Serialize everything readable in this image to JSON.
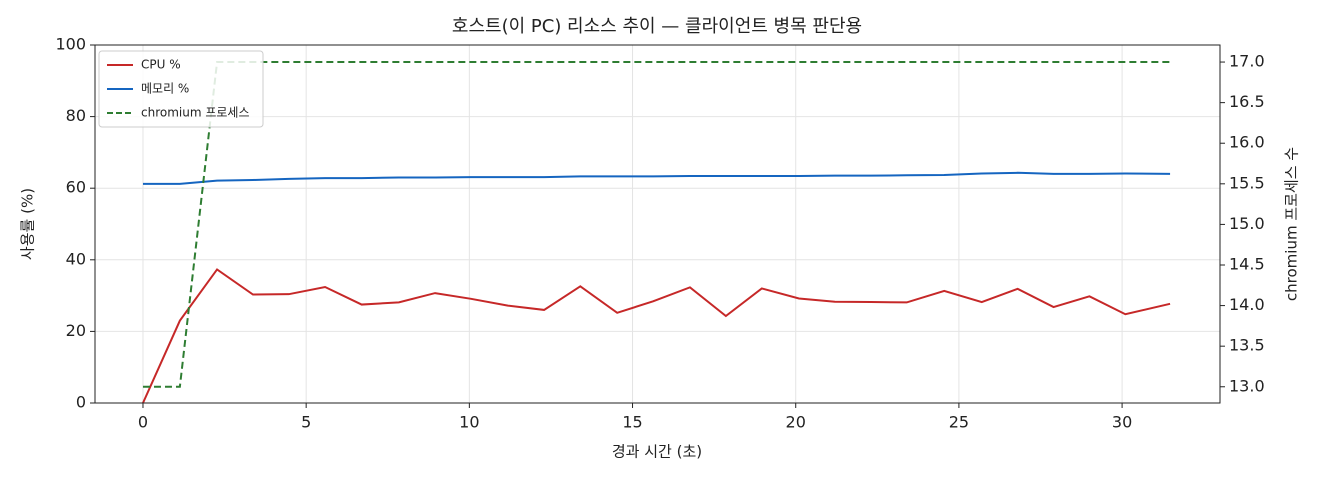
{
  "chart_data": {
    "type": "line",
    "title": "호스트(이 PC) 리소스 추이 — 클라이언트 병목 판단용",
    "xlabel": "경과 시간 (초)",
    "ylabel": "사용률 (%)",
    "y2label": "chromium 프로세스 수",
    "x": [
      0,
      1.13,
      2.27,
      3.37,
      4.47,
      5.58,
      6.7,
      7.84,
      8.95,
      10.05,
      11.18,
      12.29,
      13.4,
      14.53,
      15.63,
      16.76,
      17.86,
      18.96,
      20.1,
      21.2,
      22.3,
      23.4,
      24.55,
      25.7,
      26.8,
      27.9,
      29.0,
      30.1,
      31.47
    ],
    "series": [
      {
        "name": "CPU %",
        "color": "#c62828",
        "linestyle": "solid",
        "values": [
          0,
          23,
          37.3,
          30.3,
          30.4,
          32.4,
          27.5,
          28.1,
          30.7,
          29.1,
          27.2,
          26,
          32.6,
          25.2,
          28.4,
          32.3,
          24.3,
          32,
          29.2,
          28.3,
          28.2,
          28.1,
          31.3,
          28.2,
          31.9,
          26.8,
          29.8,
          24.8,
          27.7
        ]
      },
      {
        "name": "메모리 %",
        "color": "#1565c0",
        "linestyle": "solid",
        "values": [
          61.2,
          61.2,
          62.1,
          62.3,
          62.6,
          62.8,
          62.8,
          63.0,
          63.0,
          63.1,
          63.1,
          63.1,
          63.3,
          63.3,
          63.3,
          63.4,
          63.4,
          63.4,
          63.4,
          63.5,
          63.5,
          63.6,
          63.7,
          64.1,
          64.3,
          64.0,
          64.0,
          64.1,
          64.0
        ]
      },
      {
        "name": "chromium 프로세스",
        "color": "#2e7d32",
        "linestyle": "dashed",
        "axis": "y2",
        "values": [
          13,
          13,
          17,
          17,
          17,
          17,
          17,
          17,
          17,
          17,
          17,
          17,
          17,
          17,
          17,
          17,
          17,
          17,
          17,
          17,
          17,
          17,
          17,
          17,
          17,
          17,
          17,
          17,
          17
        ]
      }
    ],
    "xlim": [
      -1.47,
      33.0
    ],
    "xticks": [
      0,
      5,
      10,
      15,
      20,
      25,
      30
    ],
    "ylim": [
      0,
      100
    ],
    "yticks": [
      0,
      20,
      40,
      60,
      80,
      100
    ],
    "y2lim": [
      12.8,
      17.21
    ],
    "y2ticks": [
      {
        "value": 13,
        "label": "13.0"
      },
      13.5,
      {
        "value": 14,
        "label": "14.0"
      },
      14.5,
      {
        "value": 15,
        "label": "15.0"
      },
      15.5,
      {
        "value": 16,
        "label": "16.0"
      },
      16.5,
      {
        "value": 17,
        "label": "17.0"
      }
    ],
    "grid": true,
    "legend": "upper left"
  }
}
